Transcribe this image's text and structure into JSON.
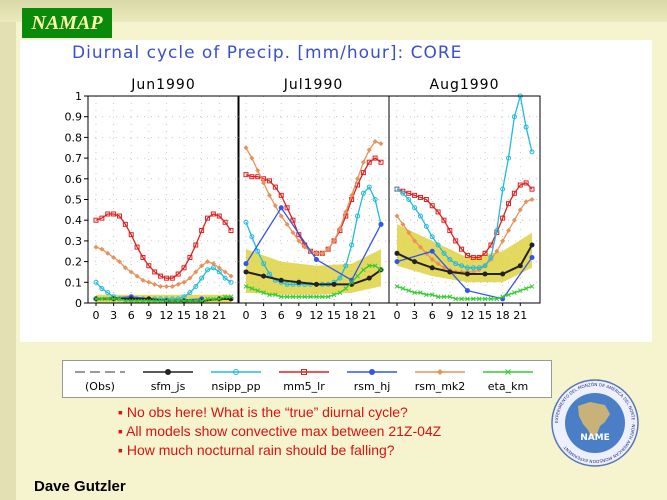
{
  "badge": "NAMAP",
  "author": "Dave Gutzler",
  "bullets": [
    "No obs here! What is the “true” diurnal cycle?",
    "All models show convective max between 21Z-04Z",
    "How much nocturnal rain should be falling?"
  ],
  "logo": {
    "text": "NAME",
    "ring_text": "EXPERIMENTO DEL MONZÓN DE AMÉRICA DEL NORTE · NORTH AMERICAN MONSOON EXPERIMENT"
  },
  "colors": {
    "obs": "#999999",
    "sfm_js": "#222222",
    "nsipp_pp": "#22bbdd",
    "mm5_lr": "#dd2222",
    "rsm_hj": "#3355ee",
    "rsm_mk2": "#e8925a",
    "eta_km": "#33cc33",
    "band": "#d9cc2a",
    "title": "#3a4fcf"
  },
  "chart_data": {
    "type": "line",
    "title": "Diurnal cycle of Precip. [mm/hour]: CORE",
    "ylim": [
      0,
      1
    ],
    "yticks": [
      "0",
      "0.1",
      "0.2",
      "0.3",
      "0.4",
      "0.5",
      "0.6",
      "0.7",
      "0.8",
      "0.9",
      "1"
    ],
    "xticks": [
      "0",
      "3",
      "6",
      "9",
      "12",
      "15",
      "18",
      "21"
    ],
    "xlabel": "",
    "ylabel": "",
    "legend": [
      "(Obs)",
      "sfm_js",
      "nsipp_pp",
      "mm5_lr",
      "rsm_hj",
      "rsm_mk2",
      "eta_km"
    ],
    "panels": [
      {
        "title": "Jun1990",
        "series": [
          {
            "name": "mm5_lr",
            "x": [
              0,
              1,
              2,
              3,
              4,
              5,
              6,
              7,
              8,
              9,
              10,
              11,
              12,
              13,
              14,
              15,
              16,
              17,
              18,
              19,
              20,
              21,
              22,
              23
            ],
            "y": [
              0.4,
              0.41,
              0.43,
              0.43,
              0.42,
              0.38,
              0.33,
              0.27,
              0.22,
              0.18,
              0.15,
              0.13,
              0.12,
              0.12,
              0.14,
              0.17,
              0.22,
              0.28,
              0.35,
              0.41,
              0.43,
              0.42,
              0.39,
              0.35
            ]
          },
          {
            "name": "rsm_mk2",
            "x": [
              0,
              1,
              2,
              3,
              4,
              5,
              6,
              7,
              8,
              9,
              10,
              11,
              12,
              13,
              14,
              15,
              16,
              17,
              18,
              19,
              20,
              21,
              22,
              23
            ],
            "y": [
              0.27,
              0.26,
              0.24,
              0.22,
              0.2,
              0.17,
              0.15,
              0.13,
              0.11,
              0.1,
              0.09,
              0.08,
              0.08,
              0.08,
              0.09,
              0.1,
              0.12,
              0.15,
              0.18,
              0.2,
              0.19,
              0.17,
              0.15,
              0.13
            ]
          },
          {
            "name": "nsipp_pp",
            "x": [
              0,
              1,
              2,
              3,
              4,
              5,
              6,
              7,
              8,
              9,
              10,
              11,
              12,
              13,
              14,
              15,
              16,
              17,
              18,
              19,
              20,
              21,
              22,
              23
            ],
            "y": [
              0.1,
              0.07,
              0.05,
              0.03,
              0.02,
              0.02,
              0.02,
              0.02,
              0.02,
              0.02,
              0.02,
              0.02,
              0.02,
              0.02,
              0.02,
              0.03,
              0.05,
              0.08,
              0.12,
              0.16,
              0.17,
              0.15,
              0.12,
              0.1
            ]
          },
          {
            "name": "rsm_hj",
            "x": [
              0,
              6,
              12,
              18
            ],
            "y": [
              0.02,
              0.03,
              0.01,
              0.02
            ]
          },
          {
            "name": "sfm_js",
            "x": [
              0,
              3,
              6,
              9,
              12,
              15,
              18,
              21,
              23
            ],
            "y": [
              0.02,
              0.02,
              0.02,
              0.02,
              0.01,
              0.01,
              0.01,
              0.02,
              0.02
            ]
          },
          {
            "name": "eta_km",
            "x": [
              0,
              1,
              2,
              3,
              4,
              5,
              6,
              7,
              8,
              9,
              10,
              11,
              12,
              13,
              14,
              15,
              16,
              17,
              18,
              19,
              20,
              21,
              22,
              23
            ],
            "y": [
              0.02,
              0.02,
              0.02,
              0.02,
              0.02,
              0.01,
              0.01,
              0.01,
              0.01,
              0.01,
              0.01,
              0.01,
              0.01,
              0.01,
              0.01,
              0.01,
              0.01,
              0.01,
              0.01,
              0.02,
              0.02,
              0.02,
              0.03,
              0.03
            ]
          }
        ],
        "band": {
          "x": [
            0,
            23
          ],
          "lower": [
            0.0,
            0.0
          ],
          "upper": [
            0.04,
            0.04
          ]
        }
      },
      {
        "title": "Jul1990",
        "series": [
          {
            "name": "mm5_lr",
            "x": [
              0,
              1,
              2,
              3,
              4,
              5,
              6,
              7,
              8,
              9,
              10,
              11,
              12,
              13,
              14,
              15,
              16,
              17,
              18,
              19,
              20,
              21,
              22,
              23
            ],
            "y": [
              0.62,
              0.61,
              0.61,
              0.6,
              0.59,
              0.56,
              0.52,
              0.46,
              0.4,
              0.33,
              0.28,
              0.25,
              0.24,
              0.24,
              0.26,
              0.3,
              0.35,
              0.42,
              0.5,
              0.57,
              0.63,
              0.68,
              0.7,
              0.68
            ]
          },
          {
            "name": "rsm_mk2",
            "x": [
              0,
              1,
              2,
              3,
              4,
              5,
              6,
              7,
              8,
              9,
              10,
              11,
              12,
              13,
              14,
              15,
              16,
              17,
              18,
              19,
              20,
              21,
              22,
              23
            ],
            "y": [
              0.75,
              0.7,
              0.64,
              0.58,
              0.52,
              0.47,
              0.42,
              0.38,
              0.34,
              0.3,
              0.27,
              0.25,
              0.24,
              0.24,
              0.26,
              0.3,
              0.36,
              0.44,
              0.52,
              0.6,
              0.68,
              0.74,
              0.78,
              0.77
            ]
          },
          {
            "name": "nsipp_pp",
            "x": [
              0,
              1,
              2,
              3,
              4,
              5,
              6,
              7,
              8,
              9,
              10,
              11,
              12,
              13,
              14,
              15,
              16,
              17,
              18,
              19,
              20,
              21,
              22,
              23
            ],
            "y": [
              0.39,
              0.32,
              0.25,
              0.19,
              0.14,
              0.11,
              0.1,
              0.09,
              0.09,
              0.09,
              0.09,
              0.09,
              0.09,
              0.09,
              0.09,
              0.1,
              0.12,
              0.18,
              0.28,
              0.42,
              0.53,
              0.56,
              0.5,
              0.38
            ]
          },
          {
            "name": "rsm_hj",
            "x": [
              0,
              6,
              12,
              18,
              23
            ],
            "y": [
              0.19,
              0.46,
              0.21,
              0.11,
              0.38
            ]
          },
          {
            "name": "sfm_js",
            "x": [
              0,
              3,
              6,
              9,
              12,
              15,
              18,
              21,
              23
            ],
            "y": [
              0.15,
              0.13,
              0.11,
              0.1,
              0.09,
              0.09,
              0.09,
              0.12,
              0.16
            ]
          },
          {
            "name": "eta_km",
            "x": [
              0,
              1,
              2,
              3,
              4,
              5,
              6,
              7,
              8,
              9,
              10,
              11,
              12,
              13,
              14,
              15,
              16,
              17,
              18,
              19,
              20,
              21,
              22,
              23
            ],
            "y": [
              0.08,
              0.07,
              0.06,
              0.05,
              0.04,
              0.04,
              0.03,
              0.03,
              0.03,
              0.03,
              0.03,
              0.03,
              0.03,
              0.03,
              0.03,
              0.04,
              0.05,
              0.07,
              0.1,
              0.13,
              0.16,
              0.18,
              0.18,
              0.16
            ]
          }
        ],
        "band": {
          "x": [
            0,
            6,
            12,
            18,
            23
          ],
          "lower": [
            0.05,
            0.04,
            0.04,
            0.05,
            0.08
          ],
          "upper": [
            0.26,
            0.2,
            0.18,
            0.19,
            0.26
          ]
        }
      },
      {
        "title": "Aug1990",
        "series": [
          {
            "name": "mm5_lr",
            "x": [
              0,
              1,
              2,
              3,
              4,
              5,
              6,
              7,
              8,
              9,
              10,
              11,
              12,
              13,
              14,
              15,
              16,
              17,
              18,
              19,
              20,
              21,
              22,
              23
            ],
            "y": [
              0.55,
              0.54,
              0.53,
              0.52,
              0.51,
              0.5,
              0.47,
              0.44,
              0.4,
              0.35,
              0.3,
              0.26,
              0.23,
              0.22,
              0.22,
              0.24,
              0.28,
              0.34,
              0.41,
              0.48,
              0.53,
              0.57,
              0.58,
              0.55
            ]
          },
          {
            "name": "rsm_mk2",
            "x": [
              0,
              1,
              2,
              3,
              4,
              5,
              6,
              7,
              8,
              9,
              10,
              11,
              12,
              13,
              14,
              15,
              16,
              17,
              18,
              19,
              20,
              21,
              22,
              23
            ],
            "y": [
              0.42,
              0.38,
              0.34,
              0.3,
              0.27,
              0.24,
              0.21,
              0.19,
              0.17,
              0.16,
              0.15,
              0.15,
              0.15,
              0.15,
              0.16,
              0.18,
              0.21,
              0.25,
              0.3,
              0.35,
              0.4,
              0.45,
              0.49,
              0.5
            ]
          },
          {
            "name": "nsipp_pp",
            "x": [
              0,
              1,
              2,
              3,
              4,
              5,
              6,
              7,
              8,
              9,
              10,
              11,
              12,
              13,
              14,
              15,
              16,
              17,
              18,
              19,
              20,
              21,
              22,
              23
            ],
            "y": [
              0.55,
              0.53,
              0.5,
              0.46,
              0.42,
              0.37,
              0.32,
              0.28,
              0.24,
              0.21,
              0.19,
              0.18,
              0.17,
              0.17,
              0.17,
              0.18,
              0.22,
              0.35,
              0.55,
              0.7,
              0.9,
              1.0,
              0.85,
              0.73
            ]
          },
          {
            "name": "rsm_hj",
            "x": [
              0,
              6,
              12,
              18,
              23
            ],
            "y": [
              0.2,
              0.25,
              0.06,
              0.02,
              0.22
            ]
          },
          {
            "name": "sfm_js",
            "x": [
              0,
              3,
              6,
              9,
              12,
              15,
              18,
              21,
              23
            ],
            "y": [
              0.24,
              0.2,
              0.17,
              0.15,
              0.14,
              0.14,
              0.14,
              0.18,
              0.28
            ]
          },
          {
            "name": "eta_km",
            "x": [
              0,
              1,
              2,
              3,
              4,
              5,
              6,
              7,
              8,
              9,
              10,
              11,
              12,
              13,
              14,
              15,
              16,
              17,
              18,
              19,
              20,
              21,
              22,
              23
            ],
            "y": [
              0.08,
              0.07,
              0.06,
              0.05,
              0.05,
              0.04,
              0.04,
              0.03,
              0.03,
              0.03,
              0.02,
              0.02,
              0.02,
              0.02,
              0.02,
              0.02,
              0.02,
              0.02,
              0.03,
              0.04,
              0.05,
              0.06,
              0.07,
              0.08
            ]
          }
        ],
        "band": {
          "x": [
            0,
            6,
            12,
            18,
            23
          ],
          "lower": [
            0.18,
            0.13,
            0.1,
            0.1,
            0.17
          ],
          "upper": [
            0.38,
            0.3,
            0.22,
            0.25,
            0.34
          ]
        }
      }
    ]
  }
}
